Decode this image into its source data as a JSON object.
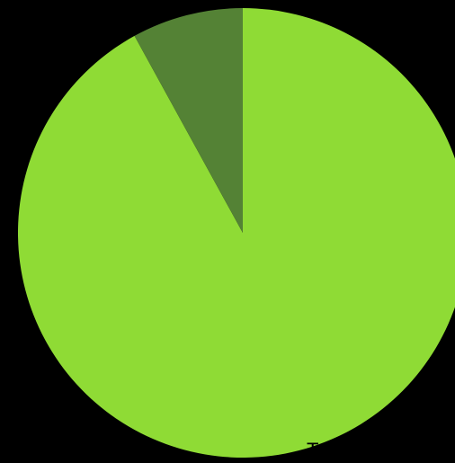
{
  "chart_data": {
    "type": "pie",
    "categories": [
      "Tom Smith",
      ""
    ],
    "values": [
      92,
      8
    ],
    "colors": [
      "#8fdb35",
      "#548235"
    ],
    "background": "#000000",
    "legend": "none"
  }
}
